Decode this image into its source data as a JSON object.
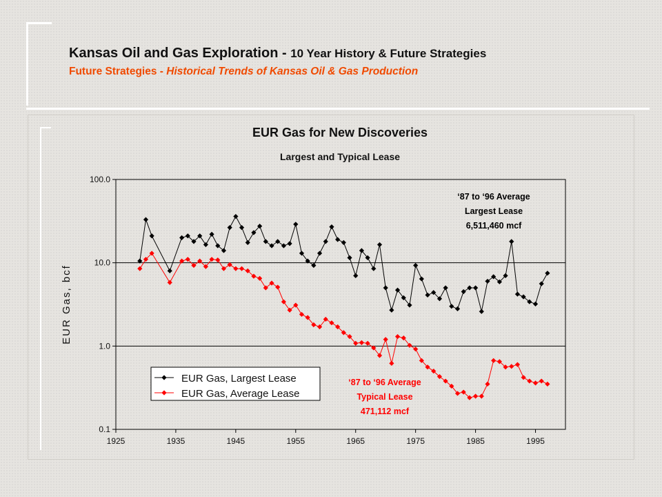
{
  "header": {
    "title_main": "Kansas Oil and Gas Exploration - ",
    "title_sub": "10 Year History & Future Strategies",
    "subtitle_main": "Future Strategies - ",
    "subtitle_italic": "Historical Trends of Kansas Oil & Gas Production"
  },
  "colors": {
    "largest": "#000000",
    "average": "#ff0000",
    "subtitle": "#f04a00"
  },
  "chart_data": {
    "type": "line",
    "title": "EUR Gas for New Discoveries",
    "subtitle": "Largest and Typical Lease",
    "xlabel": "",
    "ylabel": "EUR Gas, bcf",
    "yscale": "log",
    "ylim": [
      0.1,
      100
    ],
    "xlim": [
      1925,
      2000
    ],
    "x_ticks": [
      "1925",
      "1935",
      "1945",
      "1955",
      "1965",
      "1975",
      "1985",
      "1995"
    ],
    "y_ticks": [
      "0.1",
      "1.0",
      "10.0",
      "100.0"
    ],
    "grid": "horizontal at 1.0 and 10.0",
    "legend_position": "bottom-left",
    "annotations": [
      {
        "lines": [
          "‘87 to ‘96 Average",
          "Largest Lease",
          "6,511,460 mcf"
        ],
        "color": "#000000"
      },
      {
        "lines": [
          "‘87 to ‘96 Average",
          "Typical Lease",
          "471,112 mcf"
        ],
        "color": "#ff0000"
      }
    ],
    "series": [
      {
        "name": "EUR Gas, Largest Lease",
        "color": "#000000",
        "marker": "diamond",
        "x": [
          1929,
          1930,
          1931,
          1934,
          1936,
          1937,
          1938,
          1939,
          1940,
          1941,
          1942,
          1943,
          1944,
          1945,
          1946,
          1947,
          1948,
          1949,
          1950,
          1951,
          1952,
          1953,
          1954,
          1955,
          1956,
          1957,
          1958,
          1959,
          1960,
          1961,
          1962,
          1963,
          1964,
          1965,
          1966,
          1967,
          1968,
          1969,
          1970,
          1971,
          1972,
          1973,
          1974,
          1975,
          1976,
          1977,
          1978,
          1979,
          1980,
          1981,
          1982,
          1983,
          1984,
          1985,
          1986,
          1987,
          1988,
          1989,
          1990,
          1991,
          1992,
          1993,
          1994,
          1995,
          1996,
          1997
        ],
        "y": [
          10.5,
          33,
          21,
          8,
          20,
          21,
          18,
          21,
          16.5,
          22,
          16,
          14,
          26.5,
          36,
          26.5,
          17.5,
          23,
          27.5,
          18,
          16,
          18,
          16,
          17,
          29,
          13,
          10.5,
          9.3,
          13,
          18,
          27,
          19,
          17.5,
          11.5,
          7,
          14,
          11.5,
          8.5,
          16.5,
          5,
          2.7,
          4.7,
          3.8,
          3.1,
          9.3,
          6.4,
          4.1,
          4.4,
          3.7,
          5,
          3,
          2.8,
          4.5,
          5,
          5,
          2.6,
          6,
          6.8,
          5.9,
          7,
          18,
          4.2,
          3.9,
          3.4,
          3.2,
          5.6,
          7.5
        ]
      },
      {
        "name": "EUR Gas, Average Lease",
        "color": "#ff0000",
        "marker": "diamond",
        "x": [
          1929,
          1930,
          1931,
          1934,
          1936,
          1937,
          1938,
          1939,
          1940,
          1941,
          1942,
          1943,
          1944,
          1945,
          1946,
          1947,
          1948,
          1949,
          1950,
          1951,
          1952,
          1953,
          1954,
          1955,
          1956,
          1957,
          1958,
          1959,
          1960,
          1961,
          1962,
          1963,
          1964,
          1965,
          1966,
          1967,
          1968,
          1969,
          1970,
          1971,
          1972,
          1973,
          1974,
          1975,
          1976,
          1977,
          1978,
          1979,
          1980,
          1981,
          1982,
          1983,
          1984,
          1985,
          1986,
          1987,
          1988,
          1989,
          1990,
          1991,
          1992,
          1993,
          1994,
          1995,
          1996,
          1997
        ],
        "y": [
          8.5,
          11,
          13,
          5.8,
          10.5,
          11,
          9.3,
          10.5,
          9,
          11,
          10.8,
          8.5,
          9.5,
          8.5,
          8.5,
          8,
          6.9,
          6.5,
          5,
          5.7,
          5.1,
          3.4,
          2.7,
          3.1,
          2.4,
          2.2,
          1.8,
          1.7,
          2.1,
          1.9,
          1.7,
          1.45,
          1.3,
          1.08,
          1.1,
          1.08,
          0.95,
          0.77,
          1.2,
          0.62,
          1.3,
          1.25,
          1.02,
          0.92,
          0.67,
          0.56,
          0.5,
          0.43,
          0.38,
          0.33,
          0.27,
          0.28,
          0.24,
          0.25,
          0.25,
          0.35,
          0.67,
          0.65,
          0.56,
          0.57,
          0.6,
          0.42,
          0.38,
          0.36,
          0.38,
          0.35
        ]
      }
    ]
  }
}
